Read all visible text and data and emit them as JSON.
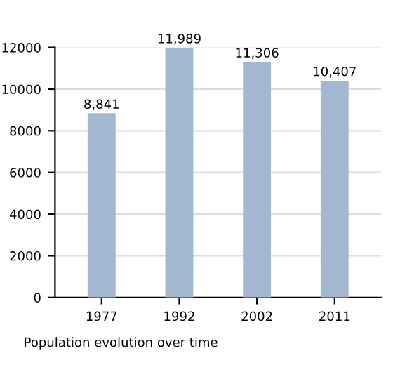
{
  "chart_data": {
    "type": "bar",
    "categories": [
      "1977",
      "1992",
      "2002",
      "2011"
    ],
    "values": [
      8841,
      11989,
      11306,
      10407
    ],
    "value_labels": [
      "8,841",
      "11,989",
      "11,306",
      "10,407"
    ],
    "color": "#a3b8d0",
    "ylim": [
      0,
      12000
    ],
    "yticks": [
      0,
      2000,
      4000,
      6000,
      8000,
      10000,
      12000
    ],
    "grid": "y",
    "legend": false,
    "annotations": [
      "Population evolution over time"
    ]
  }
}
